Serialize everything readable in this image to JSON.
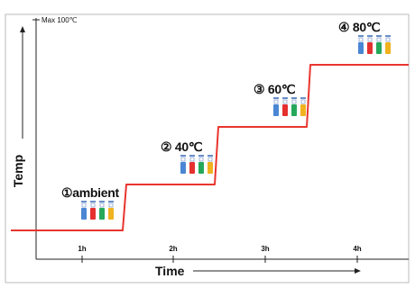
{
  "chart_data": {
    "type": "line",
    "xlabel": "Time",
    "ylabel": "Temp",
    "max_label": "Max 100℃",
    "grid": false,
    "x_ticks": [
      "1h",
      "2h",
      "3h",
      "4h"
    ],
    "steps": [
      {
        "label": "①ambient",
        "level": 0
      },
      {
        "label": "② 40℃",
        "level": 1
      },
      {
        "label": "③ 60℃",
        "level": 2
      },
      {
        "label": "④ 80℃",
        "level": 3
      }
    ],
    "line_color": "#e8352e",
    "tube_colors": [
      "#4a86d4",
      "#e53030",
      "#26a85a",
      "#f0b21e"
    ]
  }
}
